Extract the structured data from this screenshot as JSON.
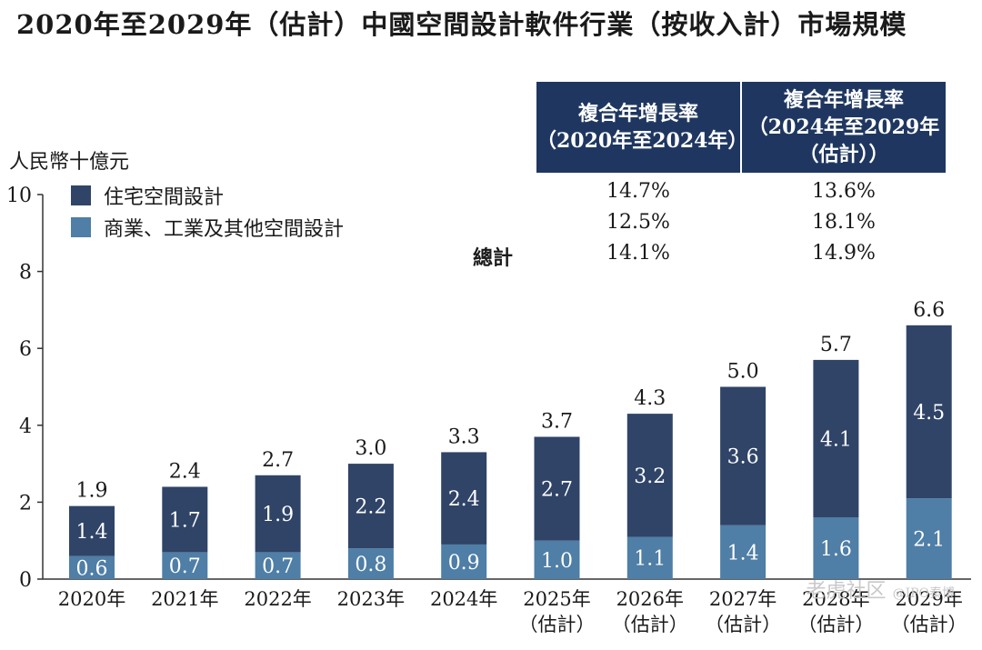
{
  "title": "2020年至2029年（估計）中國空間設計軟件行業（按收入計）市場規模",
  "unit_label": "人民幣十億元",
  "cagr_table": {
    "headers": [
      "複合年增長率（2020年至2024年）",
      "複合年增長率（2024年至2029年（估計））"
    ],
    "header_lines": [
      [
        "複合年增長率",
        "（2020年至2024年）"
      ],
      [
        "複合年增長率",
        "（2024年至2029年",
        "（估計））"
      ]
    ],
    "rows": [
      {
        "label": "",
        "values": [
          "14.7%",
          "13.6%"
        ]
      },
      {
        "label": "",
        "values": [
          "12.5%",
          "18.1%"
        ]
      },
      {
        "label": "總計",
        "values": [
          "14.1%",
          "14.9%"
        ]
      }
    ]
  },
  "watermark": "老虎社区",
  "watermark2": "@IPO秦博",
  "colors": {
    "residential": "#2f4467",
    "commercial": "#4f7ea6",
    "header_bg": "#1f3760",
    "axis": "#333333"
  },
  "chart_data": {
    "type": "bar",
    "stacked": true,
    "categories": [
      "2020年",
      "2021年",
      "2022年",
      "2023年",
      "2024年",
      "2025年（估計）",
      "2026年（估計）",
      "2027年（估計）",
      "2028年（估計）",
      "2029年（估計）"
    ],
    "category_lines": [
      [
        "2020年"
      ],
      [
        "2021年"
      ],
      [
        "2022年"
      ],
      [
        "2023年"
      ],
      [
        "2024年"
      ],
      [
        "2025年",
        "（估計）"
      ],
      [
        "2026年",
        "（估計）"
      ],
      [
        "2027年",
        "（估計）"
      ],
      [
        "2028年",
        "（估計）"
      ],
      [
        "2029年",
        "（估計）"
      ]
    ],
    "series": [
      {
        "name": "商業、工業及其他空間設計",
        "values": [
          0.6,
          0.7,
          0.7,
          0.8,
          0.9,
          1.0,
          1.1,
          1.4,
          1.6,
          2.1
        ]
      },
      {
        "name": "住宅空間設計",
        "values": [
          1.4,
          1.7,
          1.9,
          2.2,
          2.4,
          2.7,
          3.2,
          3.6,
          4.1,
          4.5
        ]
      }
    ],
    "totals": [
      1.9,
      2.4,
      2.7,
      3.0,
      3.3,
      3.7,
      4.3,
      5.0,
      5.7,
      6.6
    ],
    "legend": [
      "住宅空間設計",
      "商業、工業及其他空間設計"
    ],
    "yticks": [
      "0",
      "2",
      "4",
      "6",
      "8",
      "10"
    ],
    "ylim": [
      0,
      10
    ],
    "ylabel": "人民幣十億元",
    "xlabel": ""
  }
}
